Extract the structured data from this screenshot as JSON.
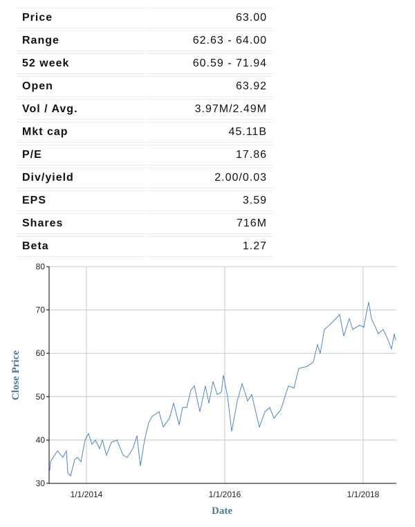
{
  "stats": [
    {
      "label": "Price",
      "value": "63.00"
    },
    {
      "label": "Range",
      "value": "62.63 - 64.00"
    },
    {
      "label": "52 week",
      "value": "60.59 - 71.94"
    },
    {
      "label": "Open",
      "value": "63.92"
    },
    {
      "label": "Vol / Avg.",
      "value": "3.97M/2.49M"
    },
    {
      "label": "Mkt cap",
      "value": "45.11B"
    },
    {
      "label": "P/E",
      "value": "17.86"
    },
    {
      "label": "Div/yield",
      "value": "2.00/0.03"
    },
    {
      "label": "EPS",
      "value": "3.59"
    },
    {
      "label": "Shares",
      "value": "716M"
    },
    {
      "label": "Beta",
      "value": "1.27"
    }
  ],
  "chart_data": {
    "type": "line",
    "title": "",
    "xlabel": "Date",
    "ylabel": "Close Price",
    "xlim": [
      2013.46,
      2018.48
    ],
    "ylim": [
      30,
      80
    ],
    "yticks": [
      30,
      40,
      50,
      60,
      70,
      80
    ],
    "xticks": [
      {
        "value": 2014,
        "label": "1/1/2014"
      },
      {
        "value": 2016,
        "label": "1/1/2016"
      },
      {
        "value": 2018,
        "label": "1/1/2018"
      }
    ],
    "grid": true,
    "line_color": "#4a86c8",
    "series": [
      {
        "name": "Close Price",
        "points": [
          [
            2013.47,
            33
          ],
          [
            2013.48,
            35
          ],
          [
            2013.58,
            37.5
          ],
          [
            2013.66,
            36
          ],
          [
            2013.71,
            37.5
          ],
          [
            2013.73,
            32.5
          ],
          [
            2013.77,
            31.7
          ],
          [
            2013.83,
            35.5
          ],
          [
            2013.87,
            36
          ],
          [
            2013.92,
            35
          ],
          [
            2013.98,
            40
          ],
          [
            2014.03,
            41.5
          ],
          [
            2014.08,
            39
          ],
          [
            2014.13,
            40
          ],
          [
            2014.19,
            38
          ],
          [
            2014.23,
            40
          ],
          [
            2014.29,
            36.5
          ],
          [
            2014.36,
            39.5
          ],
          [
            2014.44,
            40
          ],
          [
            2014.53,
            36.5
          ],
          [
            2014.59,
            36
          ],
          [
            2014.67,
            38
          ],
          [
            2014.73,
            41
          ],
          [
            2014.78,
            34
          ],
          [
            2014.84,
            40
          ],
          [
            2014.9,
            44
          ],
          [
            2014.95,
            45.5
          ],
          [
            2015.05,
            46.5
          ],
          [
            2015.11,
            43
          ],
          [
            2015.2,
            45
          ],
          [
            2015.26,
            48.5
          ],
          [
            2015.34,
            43.5
          ],
          [
            2015.39,
            47.5
          ],
          [
            2015.45,
            47.5
          ],
          [
            2015.51,
            51.5
          ],
          [
            2015.56,
            52.5
          ],
          [
            2015.64,
            46.5
          ],
          [
            2015.72,
            52.5
          ],
          [
            2015.77,
            48.5
          ],
          [
            2015.83,
            53.5
          ],
          [
            2015.89,
            50.5
          ],
          [
            2015.95,
            51
          ],
          [
            2015.98,
            55
          ],
          [
            2016.04,
            50
          ],
          [
            2016.1,
            42
          ],
          [
            2016.18,
            49
          ],
          [
            2016.25,
            53
          ],
          [
            2016.33,
            49
          ],
          [
            2016.39,
            50.5
          ],
          [
            2016.44,
            47
          ],
          [
            2016.5,
            43
          ],
          [
            2016.58,
            46.5
          ],
          [
            2016.65,
            47.5
          ],
          [
            2016.71,
            45
          ],
          [
            2016.81,
            47
          ],
          [
            2016.92,
            52.5
          ],
          [
            2017.0,
            52
          ],
          [
            2017.07,
            56.5
          ],
          [
            2017.19,
            57
          ],
          [
            2017.28,
            58
          ],
          [
            2017.34,
            62
          ],
          [
            2017.38,
            60
          ],
          [
            2017.44,
            65.5
          ],
          [
            2017.51,
            66.5
          ],
          [
            2017.61,
            68
          ],
          [
            2017.66,
            69
          ],
          [
            2017.72,
            64
          ],
          [
            2017.8,
            68
          ],
          [
            2017.85,
            65.5
          ],
          [
            2017.95,
            66.5
          ],
          [
            2018.01,
            66
          ],
          [
            2018.05,
            69.5
          ],
          [
            2018.08,
            71.8
          ],
          [
            2018.12,
            68
          ],
          [
            2018.18,
            66
          ],
          [
            2018.22,
            64.5
          ],
          [
            2018.29,
            65.5
          ],
          [
            2018.35,
            63.5
          ],
          [
            2018.41,
            61
          ],
          [
            2018.45,
            64.5
          ],
          [
            2018.47,
            63
          ]
        ]
      }
    ]
  }
}
